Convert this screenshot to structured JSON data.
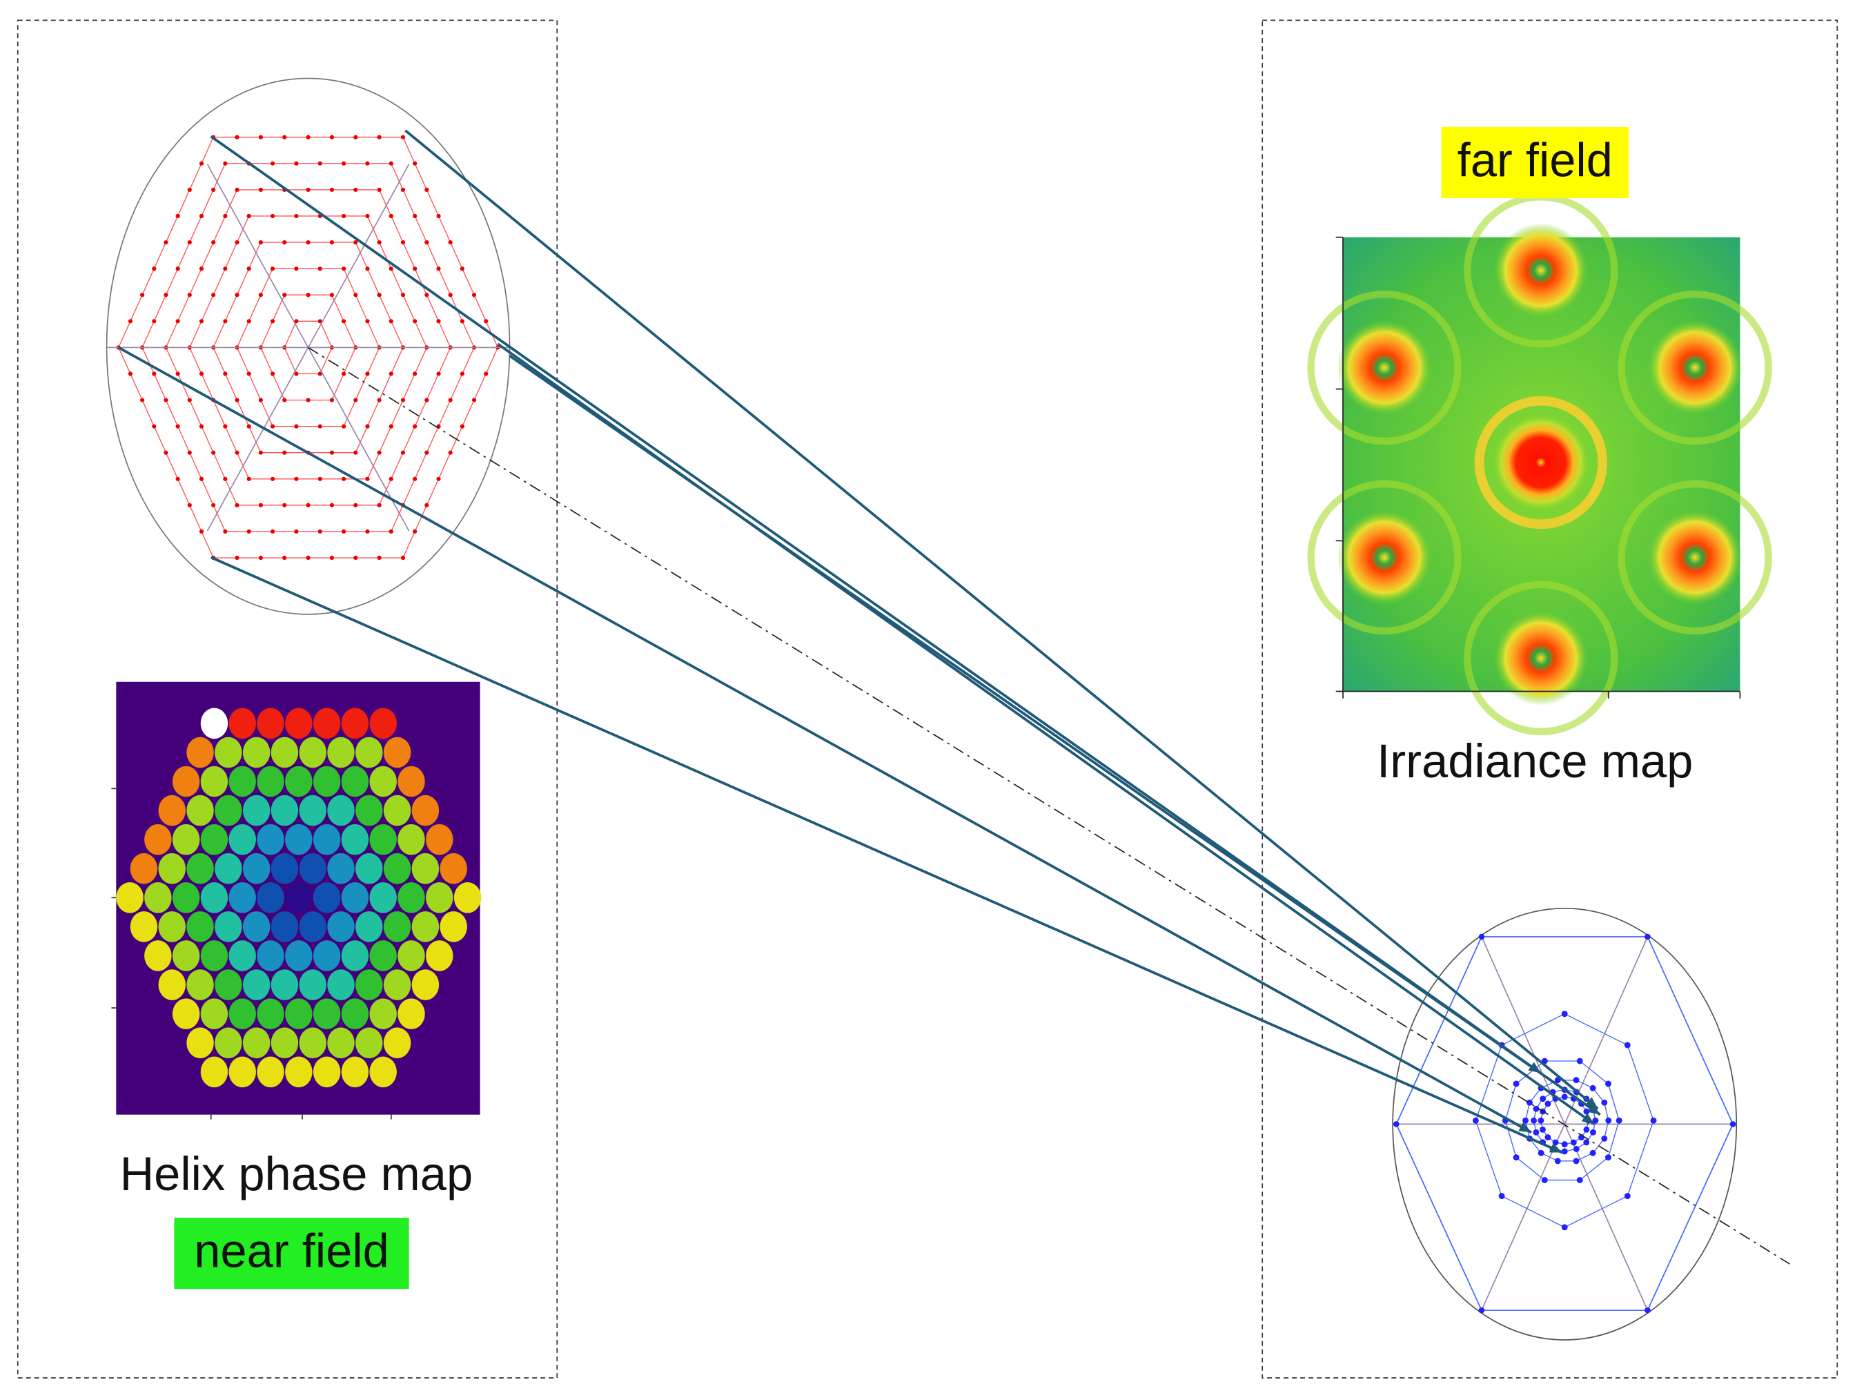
{
  "panels": {
    "near_field": {
      "title": "Helix phase map",
      "label": "near field"
    },
    "far_field": {
      "label": "far field",
      "title": "Irradiance map"
    }
  }
}
